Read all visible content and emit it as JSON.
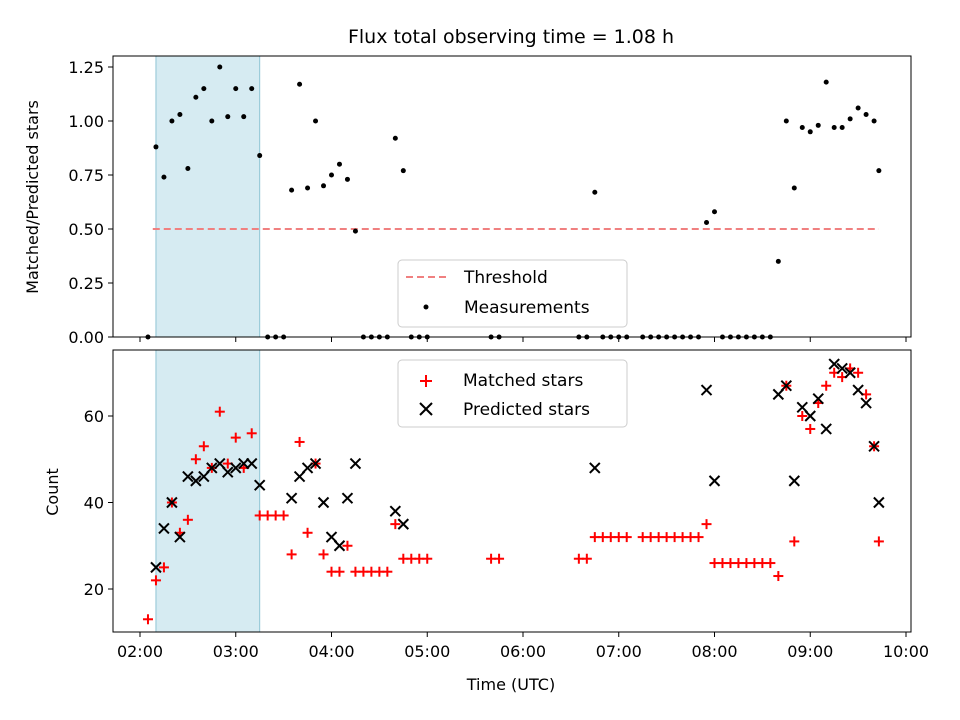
{
  "chart_data": [
    {
      "type": "scatter",
      "title": "Flux total observing time = 1.08 h",
      "xlabel": "",
      "ylabel": "Matched/Predicted stars",
      "x_unit": "time (UTC)",
      "xlim": [
        "02:00",
        "10:00"
      ],
      "x_ticks": [
        "02:00",
        "03:00",
        "04:00",
        "05:00",
        "06:00",
        "07:00",
        "08:00",
        "09:00",
        "10:00"
      ],
      "ylim": [
        0,
        1.3
      ],
      "y_ticks": [
        "0.00",
        "0.25",
        "0.50",
        "0.75",
        "1.00",
        "1.25"
      ],
      "shaded_region": {
        "x_start": "02:10",
        "x_end": "03:15",
        "color": "#add8e6"
      },
      "grid": false,
      "legend_position": "lower-center",
      "series": [
        {
          "name": "Threshold",
          "kind": "dashed-line",
          "color": "#f08080",
          "points": [
            [
              "02:08",
              0.5
            ],
            [
              "09:43",
              0.5
            ]
          ]
        },
        {
          "name": "Measurements",
          "kind": "dots",
          "color": "#000000",
          "points": [
            [
              "02:05",
              0
            ],
            [
              "02:10",
              0.88
            ],
            [
              "02:15",
              0.74
            ],
            [
              "02:20",
              1.0
            ],
            [
              "02:25",
              1.03
            ],
            [
              "02:30",
              0.78
            ],
            [
              "02:35",
              1.11
            ],
            [
              "02:40",
              1.15
            ],
            [
              "02:45",
              1.0
            ],
            [
              "02:50",
              1.25
            ],
            [
              "02:55",
              1.02
            ],
            [
              "03:00",
              1.15
            ],
            [
              "03:05",
              1.02
            ],
            [
              "03:10",
              1.15
            ],
            [
              "03:15",
              0.84
            ],
            [
              "03:20",
              0
            ],
            [
              "03:25",
              0
            ],
            [
              "03:30",
              0
            ],
            [
              "03:35",
              0.68
            ],
            [
              "03:40",
              1.17
            ],
            [
              "03:45",
              0.69
            ],
            [
              "03:50",
              1.0
            ],
            [
              "03:55",
              0.7
            ],
            [
              "04:00",
              0.75
            ],
            [
              "04:05",
              0.8
            ],
            [
              "04:10",
              0.73
            ],
            [
              "04:15",
              0.49
            ],
            [
              "04:20",
              0
            ],
            [
              "04:25",
              0
            ],
            [
              "04:30",
              0
            ],
            [
              "04:35",
              0
            ],
            [
              "04:40",
              0.92
            ],
            [
              "04:45",
              0.77
            ],
            [
              "04:50",
              0
            ],
            [
              "04:55",
              0
            ],
            [
              "05:00",
              0
            ],
            [
              "05:40",
              0
            ],
            [
              "05:45",
              0
            ],
            [
              "06:35",
              0
            ],
            [
              "06:40",
              0
            ],
            [
              "06:45",
              0.67
            ],
            [
              "06:50",
              0
            ],
            [
              "06:55",
              0
            ],
            [
              "07:00",
              0
            ],
            [
              "07:05",
              0
            ],
            [
              "07:15",
              0
            ],
            [
              "07:20",
              0
            ],
            [
              "07:25",
              0
            ],
            [
              "07:30",
              0
            ],
            [
              "07:35",
              0
            ],
            [
              "07:40",
              0
            ],
            [
              "07:45",
              0
            ],
            [
              "07:50",
              0
            ],
            [
              "07:55",
              0.53
            ],
            [
              "08:00",
              0.58
            ],
            [
              "08:05",
              0
            ],
            [
              "08:10",
              0
            ],
            [
              "08:15",
              0
            ],
            [
              "08:20",
              0
            ],
            [
              "08:25",
              0
            ],
            [
              "08:30",
              0
            ],
            [
              "08:35",
              0
            ],
            [
              "08:40",
              0.35
            ],
            [
              "08:45",
              1.0
            ],
            [
              "08:50",
              0.69
            ],
            [
              "08:55",
              0.97
            ],
            [
              "09:00",
              0.95
            ],
            [
              "09:05",
              0.98
            ],
            [
              "09:10",
              1.18
            ],
            [
              "09:15",
              0.97
            ],
            [
              "09:20",
              0.97
            ],
            [
              "09:25",
              1.01
            ],
            [
              "09:30",
              1.06
            ],
            [
              "09:35",
              1.03
            ],
            [
              "09:40",
              1.0
            ],
            [
              "09:43",
              0.77
            ]
          ]
        }
      ]
    },
    {
      "type": "scatter",
      "title": "",
      "xlabel": "Time (UTC)",
      "ylabel": "Count",
      "x_unit": "time (UTC)",
      "xlim": [
        "02:00",
        "10:00"
      ],
      "x_ticks": [
        "02:00",
        "03:00",
        "04:00",
        "05:00",
        "06:00",
        "07:00",
        "08:00",
        "09:00",
        "10:00"
      ],
      "ylim": [
        10,
        74
      ],
      "y_ticks": [
        "20",
        "40",
        "60"
      ],
      "shaded_region": {
        "x_start": "02:10",
        "x_end": "03:15",
        "color": "#add8e6"
      },
      "grid": false,
      "legend_position": "upper-center",
      "series": [
        {
          "name": "Matched stars",
          "kind": "plus",
          "color": "#ff0000",
          "points": [
            [
              "02:05",
              13
            ],
            [
              "02:10",
              22
            ],
            [
              "02:15",
              25
            ],
            [
              "02:20",
              40
            ],
            [
              "02:25",
              33
            ],
            [
              "02:30",
              36
            ],
            [
              "02:35",
              50
            ],
            [
              "02:40",
              53
            ],
            [
              "02:45",
              48
            ],
            [
              "02:50",
              61
            ],
            [
              "02:55",
              49
            ],
            [
              "03:00",
              55
            ],
            [
              "03:05",
              48
            ],
            [
              "03:10",
              56
            ],
            [
              "03:15",
              37
            ],
            [
              "03:20",
              37
            ],
            [
              "03:25",
              37
            ],
            [
              "03:30",
              37
            ],
            [
              "03:35",
              28
            ],
            [
              "03:40",
              54
            ],
            [
              "03:45",
              33
            ],
            [
              "03:50",
              49
            ],
            [
              "03:55",
              28
            ],
            [
              "04:00",
              24
            ],
            [
              "04:05",
              24
            ],
            [
              "04:10",
              30
            ],
            [
              "04:15",
              24
            ],
            [
              "04:20",
              24
            ],
            [
              "04:25",
              24
            ],
            [
              "04:30",
              24
            ],
            [
              "04:35",
              24
            ],
            [
              "04:40",
              35
            ],
            [
              "04:45",
              27
            ],
            [
              "04:50",
              27
            ],
            [
              "04:55",
              27
            ],
            [
              "05:00",
              27
            ],
            [
              "05:40",
              27
            ],
            [
              "05:45",
              27
            ],
            [
              "06:35",
              27
            ],
            [
              "06:40",
              27
            ],
            [
              "06:45",
              32
            ],
            [
              "06:50",
              32
            ],
            [
              "06:55",
              32
            ],
            [
              "07:00",
              32
            ],
            [
              "07:05",
              32
            ],
            [
              "07:15",
              32
            ],
            [
              "07:20",
              32
            ],
            [
              "07:25",
              32
            ],
            [
              "07:30",
              32
            ],
            [
              "07:35",
              32
            ],
            [
              "07:40",
              32
            ],
            [
              "07:45",
              32
            ],
            [
              "07:50",
              32
            ],
            [
              "07:55",
              35
            ],
            [
              "08:00",
              26
            ],
            [
              "08:05",
              26
            ],
            [
              "08:10",
              26
            ],
            [
              "08:15",
              26
            ],
            [
              "08:20",
              26
            ],
            [
              "08:25",
              26
            ],
            [
              "08:30",
              26
            ],
            [
              "08:35",
              26
            ],
            [
              "08:40",
              23
            ],
            [
              "08:45",
              67
            ],
            [
              "08:50",
              31
            ],
            [
              "08:55",
              60
            ],
            [
              "09:00",
              57
            ],
            [
              "09:05",
              63
            ],
            [
              "09:10",
              67
            ],
            [
              "09:15",
              70
            ],
            [
              "09:20",
              69
            ],
            [
              "09:25",
              71
            ],
            [
              "09:30",
              70
            ],
            [
              "09:35",
              65
            ],
            [
              "09:40",
              53
            ],
            [
              "09:43",
              31
            ]
          ]
        },
        {
          "name": "Predicted stars",
          "kind": "x",
          "color": "#000000",
          "points": [
            [
              "02:10",
              25
            ],
            [
              "02:15",
              34
            ],
            [
              "02:20",
              40
            ],
            [
              "02:25",
              32
            ],
            [
              "02:30",
              46
            ],
            [
              "02:35",
              45
            ],
            [
              "02:40",
              46
            ],
            [
              "02:45",
              48
            ],
            [
              "02:50",
              49
            ],
            [
              "02:55",
              47
            ],
            [
              "03:00",
              48
            ],
            [
              "03:05",
              49
            ],
            [
              "03:10",
              49
            ],
            [
              "03:15",
              44
            ],
            [
              "03:35",
              41
            ],
            [
              "03:40",
              46
            ],
            [
              "03:45",
              48
            ],
            [
              "03:50",
              49
            ],
            [
              "03:55",
              40
            ],
            [
              "04:00",
              32
            ],
            [
              "04:05",
              30
            ],
            [
              "04:10",
              41
            ],
            [
              "04:15",
              49
            ],
            [
              "04:40",
              38
            ],
            [
              "04:45",
              35
            ],
            [
              "06:45",
              48
            ],
            [
              "07:55",
              66
            ],
            [
              "08:00",
              45
            ],
            [
              "08:40",
              65
            ],
            [
              "08:45",
              67
            ],
            [
              "08:50",
              45
            ],
            [
              "08:55",
              62
            ],
            [
              "09:00",
              60
            ],
            [
              "09:05",
              64
            ],
            [
              "09:10",
              57
            ],
            [
              "09:15",
              72
            ],
            [
              "09:20",
              71
            ],
            [
              "09:25",
              70
            ],
            [
              "09:30",
              66
            ],
            [
              "09:35",
              63
            ],
            [
              "09:40",
              53
            ],
            [
              "09:43",
              40
            ]
          ]
        }
      ]
    }
  ]
}
